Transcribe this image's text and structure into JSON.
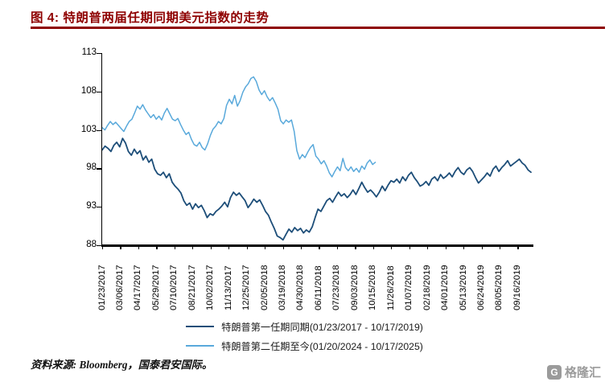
{
  "header": {
    "title": "图 4:  特朗普两届任期同期美元指数的走势"
  },
  "footer": {
    "source": "资料来源: Bloomberg，国泰君安国际。",
    "logo_text": "格隆汇",
    "logo_mark": "G"
  },
  "colors": {
    "accent_red": "#8E0000",
    "axis": "#000000",
    "series1": "#1D4E79",
    "series2": "#59A9DB",
    "logo_gray": "#9B9B9B"
  },
  "chart_data": {
    "type": "line",
    "title": "特朗普两届任期同期美元指数的走势",
    "xlabel": "",
    "ylabel": "",
    "ylim": [
      88,
      113
    ],
    "yticks": [
      88,
      93,
      98,
      103,
      108,
      113
    ],
    "grid": false,
    "legend_position": "bottom",
    "x_total_days": 997,
    "x_tick_interval_days": 42,
    "xticklabels": [
      "01/23/2017",
      "03/06/2017",
      "04/17/2017",
      "05/29/2017",
      "07/10/2017",
      "08/21/2017",
      "10/02/2017",
      "11/13/2017",
      "12/25/2017",
      "02/05/2018",
      "03/19/2018",
      "04/30/2018",
      "06/11/2018",
      "07/23/2018",
      "09/03/2018",
      "10/15/2018",
      "11/26/2018",
      "01/07/2019",
      "02/18/2019",
      "04/01/2019",
      "05/13/2019",
      "06/24/2019",
      "08/05/2019",
      "09/16/2019"
    ],
    "series": [
      {
        "name": "特朗普第一任期同期(01/23/2017 - 10/17/2019)",
        "color": "#1D4E79",
        "start_fraction": 0,
        "end_fraction": 1.0,
        "values": [
          100.4,
          100.9,
          100.6,
          100.2,
          101.0,
          101.4,
          100.8,
          101.9,
          101.3,
          100.2,
          99.7,
          100.5,
          99.9,
          100.3,
          99.1,
          99.6,
          98.8,
          99.2,
          97.9,
          97.3,
          97.1,
          97.5,
          96.8,
          97.3,
          96.2,
          95.7,
          95.3,
          94.8,
          93.8,
          93.2,
          93.5,
          92.7,
          93.4,
          92.9,
          93.2,
          92.5,
          91.6,
          92.1,
          91.9,
          92.4,
          92.7,
          93.1,
          93.6,
          93.0,
          94.2,
          94.9,
          94.5,
          94.8,
          94.3,
          93.8,
          92.9,
          93.4,
          94.0,
          93.6,
          93.9,
          93.2,
          92.4,
          91.9,
          91.0,
          90.2,
          89.2,
          89.0,
          88.7,
          89.4,
          90.1,
          89.7,
          90.3,
          89.9,
          90.2,
          89.6,
          90.0,
          89.7,
          90.4,
          91.6,
          92.7,
          92.4,
          93.1,
          93.8,
          94.1,
          93.6,
          94.3,
          94.9,
          94.4,
          94.7,
          94.2,
          94.6,
          95.2,
          94.6,
          95.4,
          96.2,
          95.5,
          94.9,
          95.2,
          94.8,
          94.3,
          94.9,
          95.7,
          95.1,
          95.8,
          96.4,
          96.2,
          96.6,
          96.1,
          96.9,
          96.4,
          97.1,
          97.5,
          96.8,
          96.3,
          95.7,
          95.9,
          96.3,
          95.8,
          96.6,
          96.9,
          96.4,
          97.2,
          96.7,
          97.0,
          97.4,
          96.9,
          97.6,
          98.1,
          97.5,
          97.2,
          97.8,
          98.1,
          97.6,
          96.8,
          96.1,
          96.5,
          96.9,
          97.4,
          97.0,
          97.9,
          98.3,
          97.6,
          98.1,
          98.5,
          99.0,
          98.3,
          98.6,
          98.9,
          99.2,
          98.7,
          98.4,
          97.8,
          97.5
        ]
      },
      {
        "name": "特朗普第二任期至今(01/20/2024 - 10/17/2025)",
        "color": "#59A9DB",
        "start_fraction": 0,
        "end_fraction": 0.637,
        "values": [
          103.3,
          103.0,
          103.6,
          104.1,
          103.7,
          104.0,
          103.6,
          103.2,
          102.8,
          103.5,
          104.1,
          104.4,
          105.2,
          106.1,
          105.7,
          106.3,
          105.6,
          105.1,
          104.6,
          105.0,
          104.4,
          104.8,
          104.3,
          105.2,
          105.8,
          105.1,
          104.4,
          104.2,
          104.5,
          103.7,
          103.0,
          102.4,
          102.7,
          101.8,
          101.1,
          100.9,
          101.4,
          100.7,
          100.4,
          101.2,
          102.3,
          103.1,
          103.5,
          104.1,
          103.8,
          104.5,
          106.2,
          107.0,
          106.4,
          107.5,
          106.1,
          106.8,
          107.9,
          108.6,
          109.0,
          109.7,
          109.9,
          109.3,
          108.2,
          107.6,
          108.1,
          107.3,
          106.8,
          107.2,
          106.5,
          105.7,
          104.2,
          103.8,
          104.3,
          104.0,
          104.3,
          102.8,
          100.3,
          99.2,
          99.8,
          99.4,
          100.1,
          100.7,
          101.1,
          99.6,
          99.2,
          98.6,
          99.0,
          98.3,
          97.4,
          96.9,
          97.6,
          98.2,
          97.7,
          99.3,
          98.1,
          97.7,
          98.2,
          97.6,
          98.0,
          97.5,
          98.3,
          97.9,
          98.7,
          99.1,
          98.5,
          98.8
        ]
      }
    ]
  }
}
